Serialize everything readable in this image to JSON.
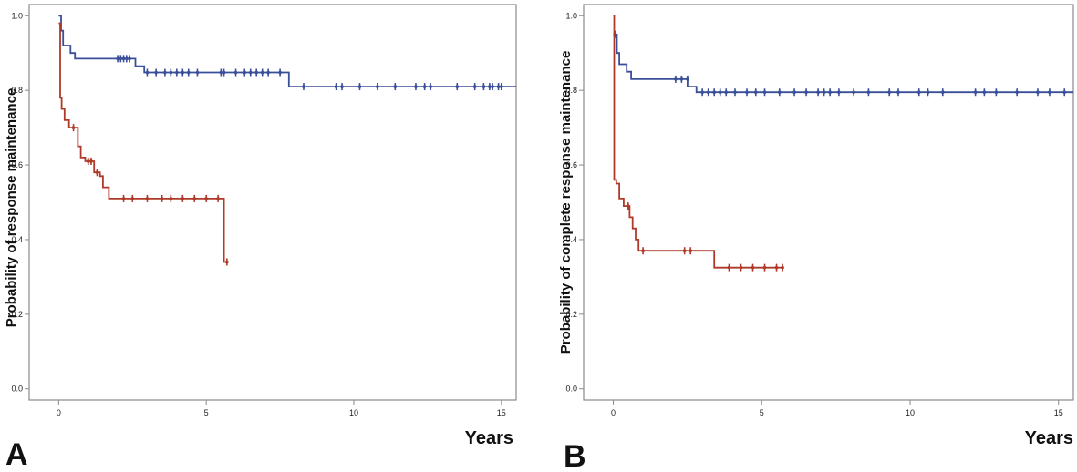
{
  "colors": {
    "blue": "#3a4f9a",
    "red": "#b03a2a",
    "frame": "#8a8a8a"
  },
  "chart_data": [
    {
      "type": "line",
      "subtype": "kaplan-meier step",
      "panel_label": "A",
      "xlabel": "Years",
      "ylabel": "Probability of response maintenance",
      "xlim": [
        -1,
        15.5
      ],
      "ylim": [
        -0.03,
        1.03
      ],
      "xticks": [
        0,
        5,
        10,
        15
      ],
      "yticks": [
        0.0,
        0.2,
        0.4,
        0.6,
        0.8,
        1.0
      ],
      "grid": false,
      "legend": "none",
      "series": [
        {
          "color": "#3a4f9a",
          "steps": [
            [
              0,
              1.0
            ],
            [
              0.08,
              0.96
            ],
            [
              0.15,
              0.92
            ],
            [
              0.4,
              0.9
            ],
            [
              0.55,
              0.885
            ],
            [
              2.6,
              0.865
            ],
            [
              2.9,
              0.848
            ],
            [
              7.8,
              0.81
            ],
            [
              15.5,
              0.81
            ]
          ],
          "censored": [
            [
              2.0,
              0.885
            ],
            [
              2.1,
              0.885
            ],
            [
              2.2,
              0.885
            ],
            [
              2.3,
              0.885
            ],
            [
              2.4,
              0.885
            ],
            [
              3.0,
              0.848
            ],
            [
              3.3,
              0.848
            ],
            [
              3.6,
              0.848
            ],
            [
              3.8,
              0.848
            ],
            [
              4.0,
              0.848
            ],
            [
              4.2,
              0.848
            ],
            [
              4.4,
              0.848
            ],
            [
              4.7,
              0.848
            ],
            [
              5.5,
              0.848
            ],
            [
              5.6,
              0.848
            ],
            [
              6.0,
              0.848
            ],
            [
              6.3,
              0.848
            ],
            [
              6.5,
              0.848
            ],
            [
              6.7,
              0.848
            ],
            [
              6.9,
              0.848
            ],
            [
              7.1,
              0.848
            ],
            [
              7.5,
              0.848
            ],
            [
              8.3,
              0.81
            ],
            [
              9.4,
              0.81
            ],
            [
              9.6,
              0.81
            ],
            [
              10.2,
              0.81
            ],
            [
              10.8,
              0.81
            ],
            [
              11.4,
              0.81
            ],
            [
              12.1,
              0.81
            ],
            [
              12.4,
              0.81
            ],
            [
              12.6,
              0.81
            ],
            [
              13.5,
              0.81
            ],
            [
              14.1,
              0.81
            ],
            [
              14.4,
              0.81
            ],
            [
              14.6,
              0.81
            ],
            [
              14.7,
              0.81
            ],
            [
              14.9,
              0.81
            ],
            [
              15.0,
              0.81
            ]
          ]
        },
        {
          "color": "#b03a2a",
          "steps": [
            [
              0,
              0.98
            ],
            [
              0.05,
              0.78
            ],
            [
              0.1,
              0.75
            ],
            [
              0.2,
              0.72
            ],
            [
              0.35,
              0.7
            ],
            [
              0.65,
              0.65
            ],
            [
              0.75,
              0.62
            ],
            [
              0.9,
              0.61
            ],
            [
              1.2,
              0.58
            ],
            [
              1.4,
              0.57
            ],
            [
              1.5,
              0.54
            ],
            [
              1.7,
              0.51
            ],
            [
              5.6,
              0.34
            ],
            [
              5.75,
              0.34
            ]
          ],
          "censored": [
            [
              0.5,
              0.7
            ],
            [
              1.0,
              0.61
            ],
            [
              1.1,
              0.61
            ],
            [
              1.3,
              0.58
            ],
            [
              2.2,
              0.51
            ],
            [
              2.5,
              0.51
            ],
            [
              3.0,
              0.51
            ],
            [
              3.5,
              0.51
            ],
            [
              3.8,
              0.51
            ],
            [
              4.2,
              0.51
            ],
            [
              4.6,
              0.51
            ],
            [
              5.0,
              0.51
            ],
            [
              5.4,
              0.51
            ],
            [
              5.7,
              0.34
            ]
          ]
        }
      ]
    },
    {
      "type": "line",
      "subtype": "kaplan-meier step",
      "panel_label": "B",
      "xlabel": "Years",
      "ylabel": "Probability of complete response maintenance",
      "xlim": [
        -1,
        15.5
      ],
      "ylim": [
        -0.03,
        1.03
      ],
      "xticks": [
        0,
        5,
        10,
        15
      ],
      "yticks": [
        0.0,
        0.2,
        0.4,
        0.6,
        0.8,
        1.0
      ],
      "grid": false,
      "legend": "none",
      "series": [
        {
          "color": "#3a4f9a",
          "steps": [
            [
              0,
              0.95
            ],
            [
              0.12,
              0.9
            ],
            [
              0.2,
              0.87
            ],
            [
              0.45,
              0.85
            ],
            [
              0.6,
              0.83
            ],
            [
              2.5,
              0.81
            ],
            [
              2.8,
              0.795
            ],
            [
              15.5,
              0.795
            ]
          ],
          "censored": [
            [
              0.05,
              0.95
            ],
            [
              2.1,
              0.83
            ],
            [
              2.3,
              0.83
            ],
            [
              2.5,
              0.83
            ],
            [
              3.0,
              0.795
            ],
            [
              3.2,
              0.795
            ],
            [
              3.4,
              0.795
            ],
            [
              3.6,
              0.795
            ],
            [
              3.8,
              0.795
            ],
            [
              4.1,
              0.795
            ],
            [
              4.5,
              0.795
            ],
            [
              4.8,
              0.795
            ],
            [
              5.1,
              0.795
            ],
            [
              5.6,
              0.795
            ],
            [
              6.1,
              0.795
            ],
            [
              6.5,
              0.795
            ],
            [
              6.9,
              0.795
            ],
            [
              7.1,
              0.795
            ],
            [
              7.3,
              0.795
            ],
            [
              7.6,
              0.795
            ],
            [
              8.1,
              0.795
            ],
            [
              8.6,
              0.795
            ],
            [
              9.3,
              0.795
            ],
            [
              9.6,
              0.795
            ],
            [
              10.3,
              0.795
            ],
            [
              10.6,
              0.795
            ],
            [
              11.1,
              0.795
            ],
            [
              12.2,
              0.795
            ],
            [
              12.5,
              0.795
            ],
            [
              12.9,
              0.795
            ],
            [
              13.6,
              0.795
            ],
            [
              14.3,
              0.795
            ],
            [
              14.7,
              0.795
            ],
            [
              15.2,
              0.795
            ]
          ]
        },
        {
          "color": "#b03a2a",
          "steps": [
            [
              0,
              1.0
            ],
            [
              0.03,
              0.56
            ],
            [
              0.1,
              0.55
            ],
            [
              0.2,
              0.51
            ],
            [
              0.35,
              0.49
            ],
            [
              0.55,
              0.46
            ],
            [
              0.65,
              0.43
            ],
            [
              0.75,
              0.4
            ],
            [
              0.85,
              0.37
            ],
            [
              3.4,
              0.325
            ],
            [
              5.75,
              0.325
            ]
          ],
          "censored": [
            [
              0.5,
              0.49
            ],
            [
              1.0,
              0.37
            ],
            [
              2.4,
              0.37
            ],
            [
              2.6,
              0.37
            ],
            [
              3.9,
              0.325
            ],
            [
              4.3,
              0.325
            ],
            [
              4.7,
              0.325
            ],
            [
              5.1,
              0.325
            ],
            [
              5.5,
              0.325
            ],
            [
              5.7,
              0.325
            ]
          ]
        }
      ]
    }
  ]
}
